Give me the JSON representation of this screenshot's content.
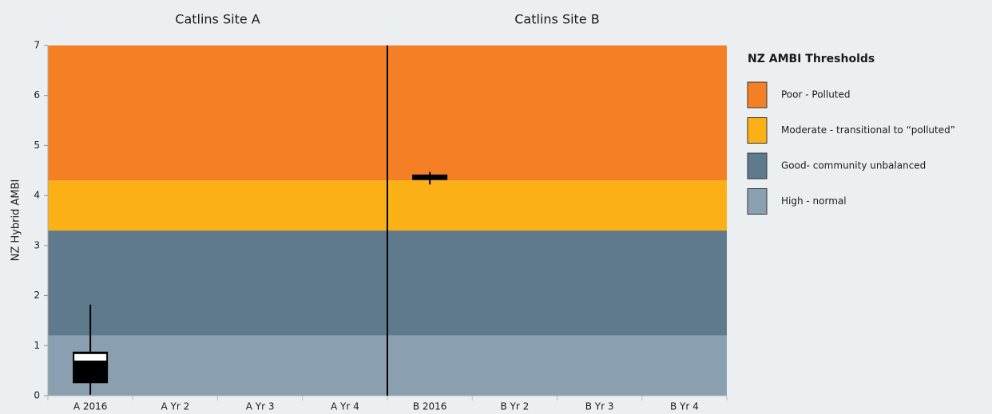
{
  "chart_data": {
    "type": "box",
    "group_labels": [
      "Catlins Site A",
      "Catlins Site B"
    ],
    "categories": [
      "A 2016",
      "A Yr 2",
      "A Yr 3",
      "A Yr 4",
      "B 2016",
      "B Yr 2",
      "B Yr 3",
      "B Yr 4"
    ],
    "stats": {
      "min": [
        0.02,
        null,
        null,
        null,
        4.22,
        null,
        null,
        null
      ],
      "q1": [
        0.25,
        null,
        null,
        null,
        4.31,
        null,
        null,
        null
      ],
      "median": [
        0.7,
        null,
        null,
        null,
        4.37,
        null,
        null,
        null
      ],
      "q3": [
        0.88,
        null,
        null,
        null,
        4.42,
        null,
        null,
        null
      ],
      "max": [
        1.82,
        null,
        null,
        null,
        4.47,
        null,
        null,
        null
      ]
    },
    "box_color": "#000000",
    "y_label": "NZ Hybrid AMBI",
    "ylim": [
      0,
      7
    ],
    "yticks": [
      0,
      1,
      2,
      3,
      4,
      5,
      6,
      7
    ],
    "legend_title": "NZ AMBI Thresholds",
    "thresholds": [
      {
        "name": "Poor - Polluted",
        "color": "#f47f24",
        "from": 4.3,
        "to": 7
      },
      {
        "name": "Moderate - transitional to “polluted”",
        "color": "#fbb116",
        "from": 3.3,
        "to": 4.3
      },
      {
        "name": "Good- community unbalanced",
        "color": "#5e7a8c",
        "from": 1.2,
        "to": 3.3
      },
      {
        "name": "High - normal",
        "color": "#8aa0b0",
        "from": 0,
        "to": 1.2
      }
    ]
  }
}
